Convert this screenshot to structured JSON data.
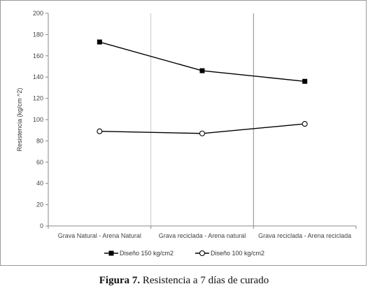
{
  "chart_data": {
    "type": "line",
    "categories": [
      "Grava Natural - Arena Natural",
      "Grava reciclada - Arena natural",
      "Grava reciclada - Arena reciclada"
    ],
    "series": [
      {
        "name": "Diseño 150 kg/cm2",
        "values": [
          173,
          146,
          136
        ],
        "marker": "filled-square",
        "color": "#000000"
      },
      {
        "name": "Diseño 100 kg/cm2",
        "values": [
          89,
          87,
          96
        ],
        "marker": "open-circle",
        "color": "#000000"
      }
    ],
    "ylabel": "Resistencia (kg/cm ^2)",
    "ylim": [
      0,
      200
    ],
    "yticks": [
      0,
      20,
      40,
      60,
      80,
      100,
      120,
      140,
      160,
      180,
      200
    ],
    "gridlines": "vertical category separators",
    "legend_position": "bottom"
  },
  "caption": {
    "label": "Figura 7.",
    "text": "Resistencia a 7 días de curado"
  }
}
